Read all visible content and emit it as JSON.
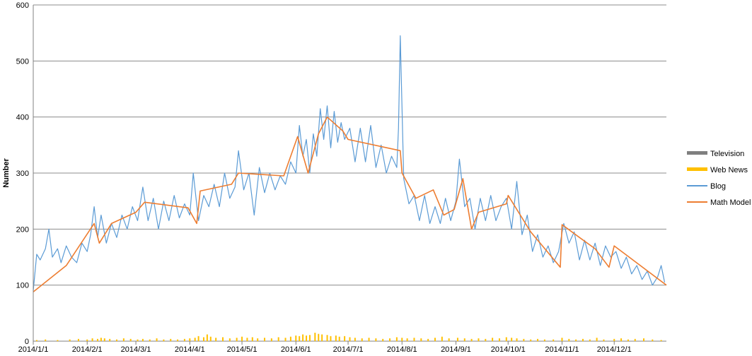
{
  "chart_data": {
    "type": "line",
    "ylabel": "Number",
    "ylim": [
      0,
      600
    ],
    "yticks": [
      0,
      100,
      200,
      300,
      400,
      500,
      600
    ],
    "grid": true,
    "legend_position": "right",
    "x_range": [
      "2014/1/1",
      "2014/12/31"
    ],
    "xtick_labels": [
      "2014/1/1",
      "2014/2/1",
      "2014/3/1",
      "2014/4/1",
      "2014/5/1",
      "2014/6/1",
      "2014/7/1",
      "2014/8/1",
      "2014/9/1",
      "2014/10/1",
      "2014/11/1",
      "2014/12/1"
    ],
    "series": [
      {
        "name": "Television",
        "kind": "bar",
        "color": "#7f7f7f",
        "points": []
      },
      {
        "name": "Web News",
        "kind": "bar",
        "color": "#ffc000",
        "points": [
          [
            "2014/1/3",
            2
          ],
          [
            "2014/1/8",
            3
          ],
          [
            "2014/1/15",
            2
          ],
          [
            "2014/1/22",
            3
          ],
          [
            "2014/1/27",
            4
          ],
          [
            "2014/2/1",
            3
          ],
          [
            "2014/2/4",
            5
          ],
          [
            "2014/2/7",
            4
          ],
          [
            "2014/2/9",
            6
          ],
          [
            "2014/2/11",
            5
          ],
          [
            "2014/2/14",
            4
          ],
          [
            "2014/2/18",
            3
          ],
          [
            "2014/2/22",
            5
          ],
          [
            "2014/2/26",
            4
          ],
          [
            "2014/3/2",
            3
          ],
          [
            "2014/3/5",
            4
          ],
          [
            "2014/3/9",
            3
          ],
          [
            "2014/3/13",
            5
          ],
          [
            "2014/3/17",
            3
          ],
          [
            "2014/3/21",
            4
          ],
          [
            "2014/3/25",
            3
          ],
          [
            "2014/3/29",
            4
          ],
          [
            "2014/4/1",
            5
          ],
          [
            "2014/4/4",
            6
          ],
          [
            "2014/4/6",
            9
          ],
          [
            "2014/4/9",
            7
          ],
          [
            "2014/4/11",
            12
          ],
          [
            "2014/4/13",
            8
          ],
          [
            "2014/4/16",
            6
          ],
          [
            "2014/4/20",
            7
          ],
          [
            "2014/4/24",
            5
          ],
          [
            "2014/4/28",
            6
          ],
          [
            "2014/5/1",
            8
          ],
          [
            "2014/5/4",
            6
          ],
          [
            "2014/5/7",
            7
          ],
          [
            "2014/5/10",
            5
          ],
          [
            "2014/5/14",
            6
          ],
          [
            "2014/5/18",
            5
          ],
          [
            "2014/5/22",
            7
          ],
          [
            "2014/5/26",
            6
          ],
          [
            "2014/5/29",
            8
          ],
          [
            "2014/6/1",
            10
          ],
          [
            "2014/6/3",
            9
          ],
          [
            "2014/6/5",
            12
          ],
          [
            "2014/6/7",
            10
          ],
          [
            "2014/6/9",
            11
          ],
          [
            "2014/6/12",
            15
          ],
          [
            "2014/6/14",
            13
          ],
          [
            "2014/6/16",
            12
          ],
          [
            "2014/6/19",
            11
          ],
          [
            "2014/6/21",
            9
          ],
          [
            "2014/6/24",
            10
          ],
          [
            "2014/6/26",
            8
          ],
          [
            "2014/6/29",
            9
          ],
          [
            "2014/7/2",
            7
          ],
          [
            "2014/7/5",
            6
          ],
          [
            "2014/7/9",
            5
          ],
          [
            "2014/7/13",
            6
          ],
          [
            "2014/7/17",
            5
          ],
          [
            "2014/7/21",
            4
          ],
          [
            "2014/7/25",
            5
          ],
          [
            "2014/7/29",
            7
          ],
          [
            "2014/8/1",
            6
          ],
          [
            "2014/8/4",
            5
          ],
          [
            "2014/8/8",
            6
          ],
          [
            "2014/8/12",
            5
          ],
          [
            "2014/8/16",
            4
          ],
          [
            "2014/8/20",
            6
          ],
          [
            "2014/8/24",
            8
          ],
          [
            "2014/8/28",
            5
          ],
          [
            "2014/9/2",
            6
          ],
          [
            "2014/9/6",
            5
          ],
          [
            "2014/9/10",
            4
          ],
          [
            "2014/9/14",
            5
          ],
          [
            "2014/9/18",
            4
          ],
          [
            "2014/9/22",
            6
          ],
          [
            "2014/9/26",
            5
          ],
          [
            "2014/9/30",
            7
          ],
          [
            "2014/10/3",
            6
          ],
          [
            "2014/10/6",
            5
          ],
          [
            "2014/10/10",
            4
          ],
          [
            "2014/10/14",
            3
          ],
          [
            "2014/10/18",
            4
          ],
          [
            "2014/10/22",
            3
          ],
          [
            "2014/10/27",
            3
          ],
          [
            "2014/11/1",
            6
          ],
          [
            "2014/11/5",
            4
          ],
          [
            "2014/11/9",
            3
          ],
          [
            "2014/11/13",
            4
          ],
          [
            "2014/11/17",
            3
          ],
          [
            "2014/11/21",
            6
          ],
          [
            "2014/11/25",
            3
          ],
          [
            "2014/12/1",
            4
          ],
          [
            "2014/12/5",
            5
          ],
          [
            "2014/12/9",
            3
          ],
          [
            "2014/12/13",
            4
          ],
          [
            "2014/12/18",
            5
          ],
          [
            "2014/12/23",
            3
          ],
          [
            "2014/12/28",
            2
          ]
        ]
      },
      {
        "name": "Blog",
        "kind": "line",
        "color": "#5b9bd5",
        "points": [
          [
            "2014/1/1",
            90
          ],
          [
            "2014/1/3",
            155
          ],
          [
            "2014/1/5",
            145
          ],
          [
            "2014/1/8",
            165
          ],
          [
            "2014/1/10",
            200
          ],
          [
            "2014/1/12",
            150
          ],
          [
            "2014/1/15",
            165
          ],
          [
            "2014/1/17",
            140
          ],
          [
            "2014/1/20",
            170
          ],
          [
            "2014/1/23",
            150
          ],
          [
            "2014/1/26",
            140
          ],
          [
            "2014/1/29",
            175
          ],
          [
            "2014/2/1",
            160
          ],
          [
            "2014/2/3",
            190
          ],
          [
            "2014/2/5",
            240
          ],
          [
            "2014/2/7",
            185
          ],
          [
            "2014/2/9",
            225
          ],
          [
            "2014/2/12",
            175
          ],
          [
            "2014/2/15",
            210
          ],
          [
            "2014/2/18",
            185
          ],
          [
            "2014/2/21",
            225
          ],
          [
            "2014/2/24",
            200
          ],
          [
            "2014/2/27",
            240
          ],
          [
            "2014/3/2",
            215
          ],
          [
            "2014/3/5",
            275
          ],
          [
            "2014/3/8",
            215
          ],
          [
            "2014/3/11",
            255
          ],
          [
            "2014/3/14",
            200
          ],
          [
            "2014/3/17",
            250
          ],
          [
            "2014/3/20",
            215
          ],
          [
            "2014/3/23",
            260
          ],
          [
            "2014/3/26",
            220
          ],
          [
            "2014/3/29",
            245
          ],
          [
            "2014/4/1",
            225
          ],
          [
            "2014/4/3",
            300
          ],
          [
            "2014/4/6",
            215
          ],
          [
            "2014/4/9",
            260
          ],
          [
            "2014/4/12",
            240
          ],
          [
            "2014/4/15",
            280
          ],
          [
            "2014/4/18",
            240
          ],
          [
            "2014/4/21",
            300
          ],
          [
            "2014/4/24",
            255
          ],
          [
            "2014/4/27",
            275
          ],
          [
            "2014/4/29",
            340
          ],
          [
            "2014/5/2",
            270
          ],
          [
            "2014/5/5",
            300
          ],
          [
            "2014/5/8",
            225
          ],
          [
            "2014/5/11",
            310
          ],
          [
            "2014/5/14",
            265
          ],
          [
            "2014/5/17",
            300
          ],
          [
            "2014/5/20",
            270
          ],
          [
            "2014/5/23",
            295
          ],
          [
            "2014/5/26",
            280
          ],
          [
            "2014/5/29",
            320
          ],
          [
            "2014/6/1",
            300
          ],
          [
            "2014/6/3",
            385
          ],
          [
            "2014/6/5",
            330
          ],
          [
            "2014/6/7",
            360
          ],
          [
            "2014/6/9",
            300
          ],
          [
            "2014/6/11",
            370
          ],
          [
            "2014/6/13",
            330
          ],
          [
            "2014/6/15",
            415
          ],
          [
            "2014/6/17",
            360
          ],
          [
            "2014/6/19",
            420
          ],
          [
            "2014/6/21",
            345
          ],
          [
            "2014/6/23",
            410
          ],
          [
            "2014/6/25",
            355
          ],
          [
            "2014/6/27",
            390
          ],
          [
            "2014/6/29",
            360
          ],
          [
            "2014/7/2",
            380
          ],
          [
            "2014/7/5",
            320
          ],
          [
            "2014/7/8",
            380
          ],
          [
            "2014/7/11",
            320
          ],
          [
            "2014/7/14",
            385
          ],
          [
            "2014/7/17",
            310
          ],
          [
            "2014/7/20",
            350
          ],
          [
            "2014/7/23",
            300
          ],
          [
            "2014/7/26",
            330
          ],
          [
            "2014/7/29",
            310
          ],
          [
            "2014/7/30",
            380
          ],
          [
            "2014/7/31",
            545
          ],
          [
            "2014/8/2",
            290
          ],
          [
            "2014/8/5",
            245
          ],
          [
            "2014/8/8",
            260
          ],
          [
            "2014/8/11",
            215
          ],
          [
            "2014/8/14",
            260
          ],
          [
            "2014/8/17",
            210
          ],
          [
            "2014/8/20",
            240
          ],
          [
            "2014/8/23",
            210
          ],
          [
            "2014/8/26",
            255
          ],
          [
            "2014/8/29",
            215
          ],
          [
            "2014/9/1",
            250
          ],
          [
            "2014/9/3",
            325
          ],
          [
            "2014/9/6",
            240
          ],
          [
            "2014/9/9",
            255
          ],
          [
            "2014/9/12",
            200
          ],
          [
            "2014/9/15",
            255
          ],
          [
            "2014/9/18",
            215
          ],
          [
            "2014/9/21",
            260
          ],
          [
            "2014/9/24",
            215
          ],
          [
            "2014/9/27",
            240
          ],
          [
            "2014/9/30",
            255
          ],
          [
            "2014/10/3",
            200
          ],
          [
            "2014/10/6",
            285
          ],
          [
            "2014/10/9",
            190
          ],
          [
            "2014/10/12",
            225
          ],
          [
            "2014/10/15",
            160
          ],
          [
            "2014/10/18",
            190
          ],
          [
            "2014/10/21",
            150
          ],
          [
            "2014/10/24",
            170
          ],
          [
            "2014/10/27",
            140
          ],
          [
            "2014/10/30",
            160
          ],
          [
            "2014/11/2",
            210
          ],
          [
            "2014/11/5",
            175
          ],
          [
            "2014/11/8",
            195
          ],
          [
            "2014/11/11",
            145
          ],
          [
            "2014/11/14",
            180
          ],
          [
            "2014/11/17",
            145
          ],
          [
            "2014/11/20",
            175
          ],
          [
            "2014/11/23",
            135
          ],
          [
            "2014/11/26",
            170
          ],
          [
            "2014/11/29",
            150
          ],
          [
            "2014/12/2",
            160
          ],
          [
            "2014/12/5",
            130
          ],
          [
            "2014/12/8",
            150
          ],
          [
            "2014/12/11",
            120
          ],
          [
            "2014/12/14",
            135
          ],
          [
            "2014/12/17",
            110
          ],
          [
            "2014/12/20",
            125
          ],
          [
            "2014/12/23",
            100
          ],
          [
            "2014/12/26",
            115
          ],
          [
            "2014/12/28",
            135
          ],
          [
            "2014/12/30",
            105
          ]
        ]
      },
      {
        "name": "Math Model",
        "kind": "line",
        "color": "#ed7d31",
        "points": [
          [
            "2014/1/1",
            88
          ],
          [
            "2014/1/20",
            135
          ],
          [
            "2014/2/5",
            210
          ],
          [
            "2014/2/8",
            175
          ],
          [
            "2014/2/15",
            210
          ],
          [
            "2014/3/1",
            230
          ],
          [
            "2014/3/6",
            248
          ],
          [
            "2014/3/31",
            238
          ],
          [
            "2014/4/5",
            210
          ],
          [
            "2014/4/7",
            268
          ],
          [
            "2014/4/25",
            280
          ],
          [
            "2014/4/29",
            300
          ],
          [
            "2014/5/25",
            295
          ],
          [
            "2014/6/2",
            365
          ],
          [
            "2014/6/8",
            300
          ],
          [
            "2014/6/14",
            370
          ],
          [
            "2014/6/19",
            400
          ],
          [
            "2014/6/28",
            375
          ],
          [
            "2014/7/1",
            360
          ],
          [
            "2014/7/31",
            340
          ],
          [
            "2014/8/1",
            300
          ],
          [
            "2014/8/9",
            255
          ],
          [
            "2014/8/19",
            270
          ],
          [
            "2014/8/25",
            225
          ],
          [
            "2014/8/31",
            235
          ],
          [
            "2014/9/5",
            290
          ],
          [
            "2014/9/10",
            200
          ],
          [
            "2014/9/14",
            230
          ],
          [
            "2014/9/30",
            245
          ],
          [
            "2014/10/1",
            260
          ],
          [
            "2014/10/14",
            195
          ],
          [
            "2014/10/31",
            132
          ],
          [
            "2014/11/1",
            208
          ],
          [
            "2014/11/11",
            185
          ],
          [
            "2014/11/20",
            165
          ],
          [
            "2014/11/28",
            132
          ],
          [
            "2014/12/1",
            170
          ],
          [
            "2014/12/31",
            100
          ]
        ]
      }
    ]
  }
}
